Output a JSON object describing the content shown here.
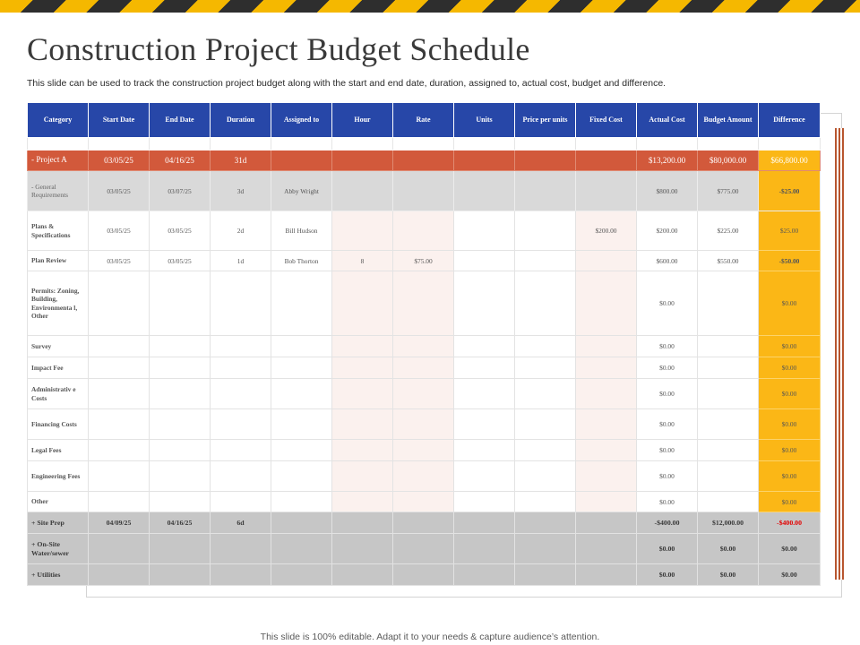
{
  "title": "Construction Project Budget Schedule",
  "subtitle": "This slide can be used to track the construction project budget along with the start and end date, duration, assigned to, actual cost, budget and difference.",
  "footer": "This slide is 100% editable. Adapt it to your needs & capture audience’s attention.",
  "colors": {
    "header": "#2747a8",
    "project": "#d2593b",
    "difference": "#fbb716",
    "hazard_yellow": "#f5b800",
    "hazard_dark": "#2e2e2e",
    "negative": "#e30000"
  },
  "table": {
    "headers": [
      "Category",
      "Start Date",
      "End Date",
      "Duration",
      "Assigned to",
      "Hour",
      "Rate",
      "Units",
      "Price per units",
      "Fixed Cost",
      "Actual Cost",
      "Budget Amount",
      "Difference"
    ],
    "project": [
      "- Project A",
      "03/05/25",
      "04/16/25",
      "31d",
      "",
      "",
      "",
      "",
      "",
      "",
      "$13,200.00",
      "$80,000.00",
      "$66,800.00"
    ],
    "general": [
      "- General Requirements",
      "03/05/25",
      "03/07/25",
      "3d",
      "Abby Wright",
      "",
      "",
      "",
      "",
      "",
      "$800.00",
      "$775.00",
      "-$25.00"
    ],
    "rows": [
      [
        "Plans & Specifications",
        "03/05/25",
        "03/05/25",
        "2d",
        "Bill Hudson",
        "",
        "",
        "",
        "",
        "$200.00",
        "$200.00",
        "$225.00",
        "$25.00"
      ],
      [
        "Plan Review",
        "03/05/25",
        "03/05/25",
        "1d",
        "Bob Thorton",
        "8",
        "$75.00",
        "",
        "",
        "",
        "$600.00",
        "$550.00",
        "-$50.00"
      ],
      [
        "Permits: Zoning, Building, Environmenta l, Other",
        "",
        "",
        "",
        "",
        "",
        "",
        "",
        "",
        "",
        "$0.00",
        "",
        "$0.00"
      ],
      [
        "Survey",
        "",
        "",
        "",
        "",
        "",
        "",
        "",
        "",
        "",
        "$0.00",
        "",
        "$0.00"
      ],
      [
        "Impact Fee",
        "",
        "",
        "",
        "",
        "",
        "",
        "",
        "",
        "",
        "$0.00",
        "",
        "$0.00"
      ],
      [
        "Administrativ e Costs",
        "",
        "",
        "",
        "",
        "",
        "",
        "",
        "",
        "",
        "$0.00",
        "",
        "$0.00"
      ],
      [
        "Financing Costs",
        "",
        "",
        "",
        "",
        "",
        "",
        "",
        "",
        "",
        "$0.00",
        "",
        "$0.00"
      ],
      [
        "Legal Fees",
        "",
        "",
        "",
        "",
        "",
        "",
        "",
        "",
        "",
        "$0.00",
        "",
        "$0.00"
      ],
      [
        "Engineering Fees",
        "",
        "",
        "",
        "",
        "",
        "",
        "",
        "",
        "",
        "$0.00",
        "",
        "$0.00"
      ],
      [
        "Other",
        "",
        "",
        "",
        "",
        "",
        "",
        "",
        "",
        "",
        "$0.00",
        "",
        "$0.00"
      ]
    ],
    "summary": [
      [
        "+ Site Prep",
        "04/09/25",
        "04/16/25",
        "6d",
        "",
        "",
        "",
        "",
        "",
        "",
        "-$400.00",
        "$12,000.00",
        "-$400.00"
      ],
      [
        "+ On-Site Water/sewer",
        "",
        "",
        "",
        "",
        "",
        "",
        "",
        "",
        "",
        "$0.00",
        "$0.00",
        "$0.00"
      ],
      [
        "+ Utilities",
        "",
        "",
        "",
        "",
        "",
        "",
        "",
        "",
        "",
        "$0.00",
        "$0.00",
        "$0.00"
      ]
    ]
  }
}
